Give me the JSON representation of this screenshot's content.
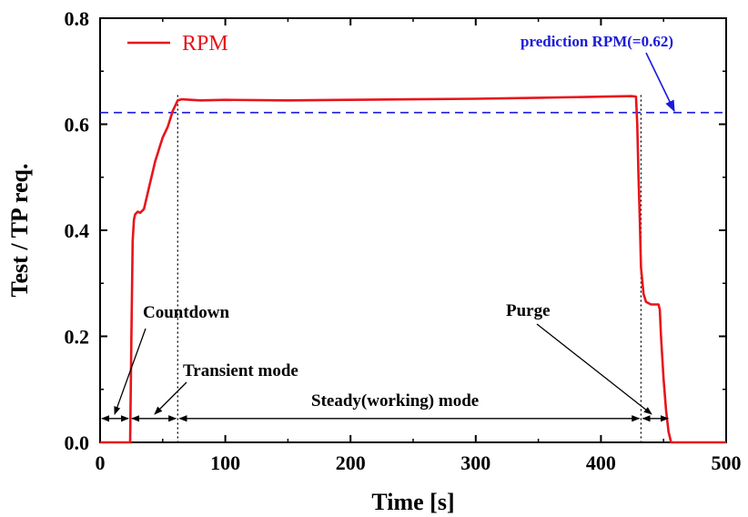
{
  "chart_data": {
    "type": "line",
    "xlabel": "Time [s]",
    "ylabel": "Test / TP req.",
    "xlim": [
      0,
      500
    ],
    "ylim": [
      0,
      0.8
    ],
    "xticks": [
      0,
      100,
      200,
      300,
      400,
      500
    ],
    "xtick_labels": [
      "0",
      "100",
      "200",
      "300",
      "400",
      "500"
    ],
    "yticks": [
      0.0,
      0.2,
      0.4,
      0.6,
      0.8
    ],
    "ytick_labels": [
      "0.0",
      "0.2",
      "0.4",
      "0.6",
      "0.8"
    ],
    "grid": false,
    "legend": {
      "position": "top-left",
      "entries": [
        "RPM"
      ]
    },
    "series": [
      {
        "name": "RPM",
        "color": "#e8141b",
        "x": [
          0,
          24,
          25,
          26,
          27,
          28,
          30,
          32,
          35,
          38,
          40,
          42,
          44,
          46,
          48,
          50,
          52,
          54,
          56,
          58,
          60,
          62,
          65,
          80,
          100,
          150,
          200,
          250,
          300,
          350,
          400,
          425,
          428,
          429,
          430,
          431,
          432,
          434,
          436,
          440,
          444,
          446,
          447,
          448,
          450,
          452,
          454,
          456,
          458,
          500
        ],
        "values": [
          0.0,
          0.0,
          0.2,
          0.38,
          0.42,
          0.43,
          0.435,
          0.433,
          0.44,
          0.47,
          0.49,
          0.51,
          0.53,
          0.545,
          0.56,
          0.575,
          0.585,
          0.595,
          0.61,
          0.625,
          0.635,
          0.645,
          0.647,
          0.645,
          0.646,
          0.645,
          0.646,
          0.647,
          0.648,
          0.65,
          0.652,
          0.653,
          0.652,
          0.6,
          0.5,
          0.42,
          0.33,
          0.28,
          0.265,
          0.26,
          0.26,
          0.26,
          0.25,
          0.2,
          0.12,
          0.06,
          0.02,
          0.0,
          0.0,
          0.0
        ]
      }
    ],
    "reference_lines": [
      {
        "label": "prediction RPM(=0.62)",
        "y": 0.622,
        "style": "dashed",
        "color": "#1a1adb"
      }
    ],
    "phase_boundaries_x": [
      62,
      432
    ],
    "annotations": [
      {
        "text": "Countdown",
        "target": "countdown-interval"
      },
      {
        "text": "Transient mode",
        "target": "transient-interval"
      },
      {
        "text": "Steady(working) mode",
        "target": "steady-interval"
      },
      {
        "text": "Purge",
        "target": "purge-interval"
      }
    ],
    "intervals": [
      {
        "name": "countdown",
        "start": 0,
        "end": 24,
        "y": 0.045
      },
      {
        "name": "transient",
        "start": 24,
        "end": 62,
        "y": 0.045
      },
      {
        "name": "steady",
        "start": 62,
        "end": 432,
        "y": 0.045
      },
      {
        "name": "purge",
        "start": 432,
        "end": 455,
        "y": 0.045
      }
    ]
  }
}
